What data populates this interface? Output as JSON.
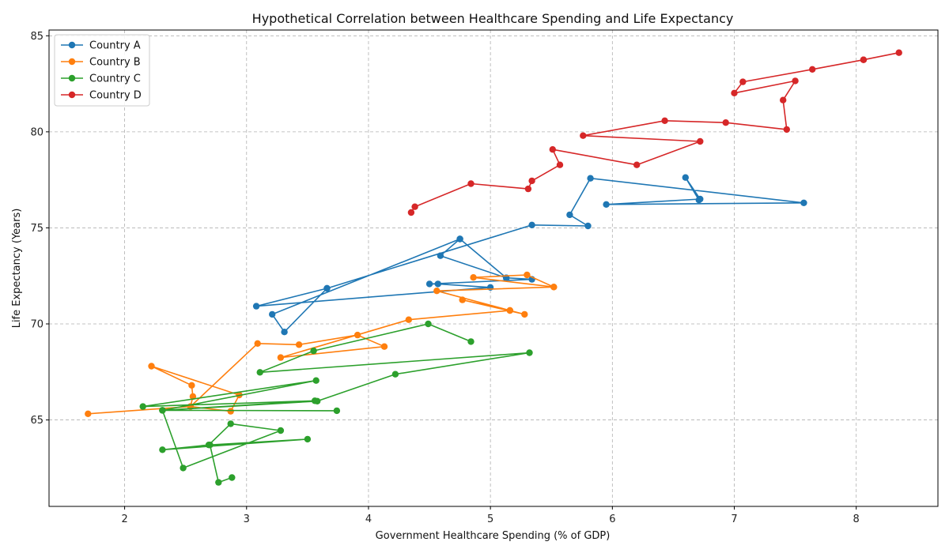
{
  "chart_data": {
    "type": "line",
    "title": "Hypothetical Correlation between Healthcare Spending and Life Expectancy",
    "xlabel": "Government Healthcare Spending (% of GDP)",
    "ylabel": "Life Expectancy (Years)",
    "xlim": [
      1.38,
      8.67
    ],
    "ylim": [
      60.5,
      85.3
    ],
    "xticks": [
      2,
      3,
      4,
      5,
      6,
      7,
      8
    ],
    "xtick_labels": [
      "2",
      "3",
      "4",
      "5",
      "6",
      "7",
      "8"
    ],
    "yticks": [
      65,
      70,
      75,
      80,
      85
    ],
    "ytick_labels": [
      "65",
      "70",
      "75",
      "80",
      "85"
    ],
    "grid": true,
    "legend_position": "top-left",
    "series": [
      {
        "name": "Country A",
        "color": "#1f77b4",
        "points": [
          [
            3.66,
            71.85
          ],
          [
            3.08,
            70.92
          ],
          [
            5.0,
            71.9
          ],
          [
            4.57,
            72.08
          ],
          [
            4.5,
            72.08
          ],
          [
            5.34,
            72.32
          ],
          [
            5.13,
            72.4
          ],
          [
            4.75,
            74.42
          ],
          [
            4.59,
            73.55
          ],
          [
            5.13,
            72.4
          ],
          [
            4.75,
            74.42
          ],
          [
            3.21,
            70.5
          ],
          [
            3.31,
            69.58
          ],
          [
            3.66,
            71.85
          ],
          [
            5.34,
            75.15
          ],
          [
            5.8,
            75.1
          ],
          [
            5.65,
            75.68
          ],
          [
            5.82,
            77.58
          ],
          [
            7.57,
            76.3
          ],
          [
            5.95,
            76.22
          ],
          [
            6.72,
            76.5
          ],
          [
            6.6,
            77.62
          ],
          [
            6.71,
            76.45
          ]
        ]
      },
      {
        "name": "Country B",
        "color": "#ff7f0e",
        "points": [
          [
            1.7,
            65.32
          ],
          [
            2.54,
            65.7
          ],
          [
            2.56,
            66.22
          ],
          [
            2.55,
            66.8
          ],
          [
            2.22,
            67.8
          ],
          [
            2.94,
            66.3
          ],
          [
            2.87,
            65.45
          ],
          [
            2.54,
            65.7
          ],
          [
            3.09,
            68.98
          ],
          [
            3.43,
            68.92
          ],
          [
            3.91,
            69.42
          ],
          [
            4.13,
            68.82
          ],
          [
            3.28,
            68.25
          ],
          [
            4.33,
            70.22
          ],
          [
            5.16,
            70.7
          ],
          [
            4.77,
            71.25
          ],
          [
            5.28,
            70.5
          ],
          [
            5.16,
            70.7
          ],
          [
            4.56,
            71.72
          ],
          [
            5.52,
            71.92
          ],
          [
            4.86,
            72.42
          ],
          [
            5.3,
            72.55
          ],
          [
            5.52,
            71.92
          ]
        ]
      },
      {
        "name": "Country C",
        "color": "#2ca02c",
        "points": [
          [
            2.88,
            62.0
          ],
          [
            2.77,
            61.75
          ],
          [
            2.7,
            63.7
          ],
          [
            3.5,
            64.0
          ],
          [
            2.31,
            63.45
          ],
          [
            2.69,
            63.7
          ],
          [
            2.87,
            64.8
          ],
          [
            3.28,
            64.45
          ],
          [
            2.48,
            62.5
          ],
          [
            2.31,
            65.5
          ],
          [
            3.74,
            65.48
          ],
          [
            2.31,
            65.5
          ],
          [
            3.56,
            66.0
          ],
          [
            2.15,
            65.7
          ],
          [
            3.57,
            67.05
          ],
          [
            2.31,
            65.5
          ],
          [
            3.58,
            65.98
          ],
          [
            4.22,
            67.38
          ],
          [
            5.32,
            68.5
          ],
          [
            3.11,
            67.48
          ],
          [
            3.55,
            68.6
          ],
          [
            4.49,
            70.0
          ],
          [
            4.84,
            69.08
          ]
        ]
      },
      {
        "name": "Country D",
        "color": "#d62728",
        "points": [
          [
            4.35,
            75.8
          ],
          [
            4.38,
            76.1
          ],
          [
            4.84,
            77.3
          ],
          [
            5.31,
            77.03
          ],
          [
            5.34,
            77.45
          ],
          [
            5.57,
            78.28
          ],
          [
            5.51,
            79.08
          ],
          [
            6.2,
            78.28
          ],
          [
            6.72,
            79.5
          ],
          [
            5.76,
            79.8
          ],
          [
            6.43,
            80.58
          ],
          [
            6.93,
            80.48
          ],
          [
            7.43,
            80.12
          ],
          [
            7.4,
            81.65
          ],
          [
            7.5,
            82.65
          ],
          [
            7.0,
            82.02
          ],
          [
            7.07,
            82.6
          ],
          [
            7.64,
            83.25
          ],
          [
            8.06,
            83.75
          ],
          [
            8.35,
            84.12
          ],
          [
            8.06,
            83.75
          ]
        ]
      }
    ]
  }
}
